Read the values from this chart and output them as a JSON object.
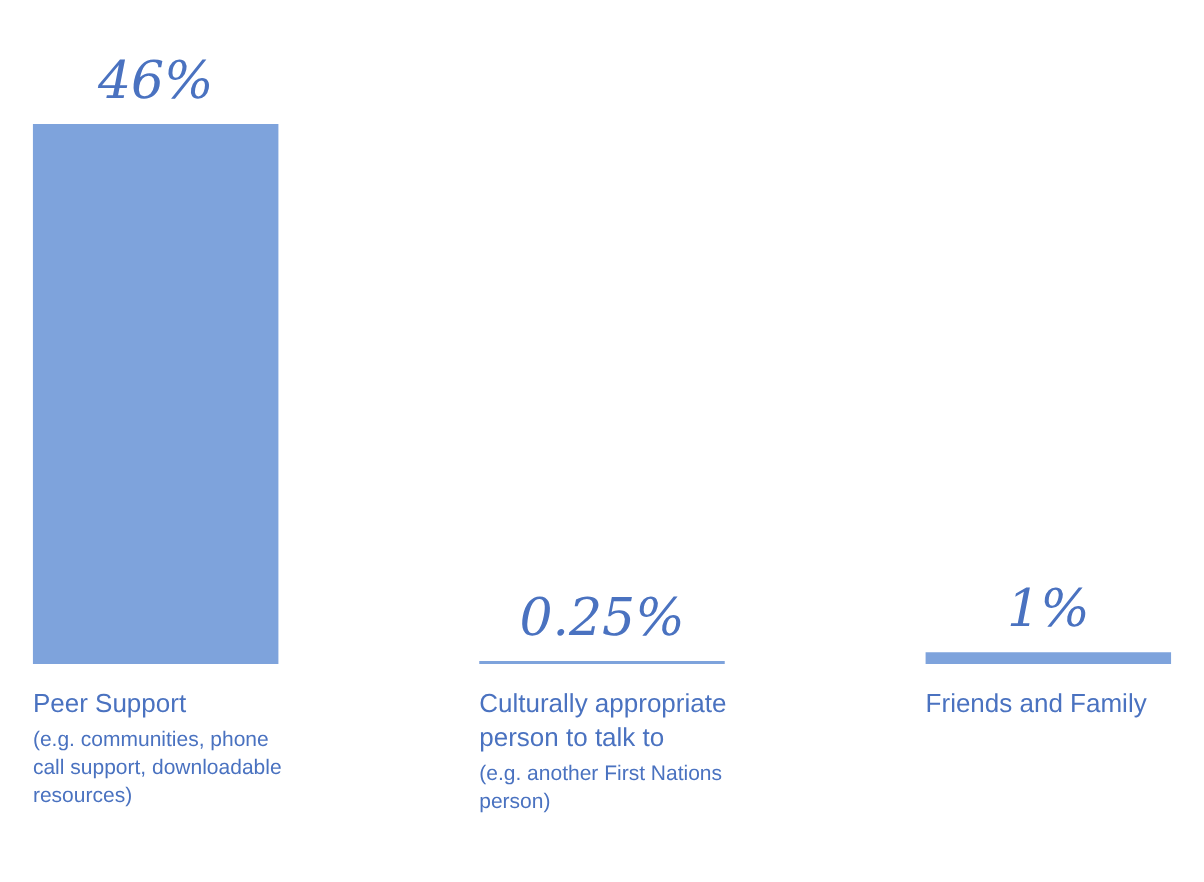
{
  "chart_data": {
    "type": "bar",
    "categories": [
      "Peer Support",
      "Culturally appropriate person to talk to",
      "Friends and Family"
    ],
    "values": [
      46,
      0.25,
      1
    ],
    "color": "#7ea3dc",
    "data_labels": true,
    "value_labels": [
      "46%",
      "0.25%",
      "1%"
    ],
    "annotations": [
      "(e.g. communities, phone call support, downloadable resources)",
      "(e.g. another First Nations person)"
    ]
  }
}
